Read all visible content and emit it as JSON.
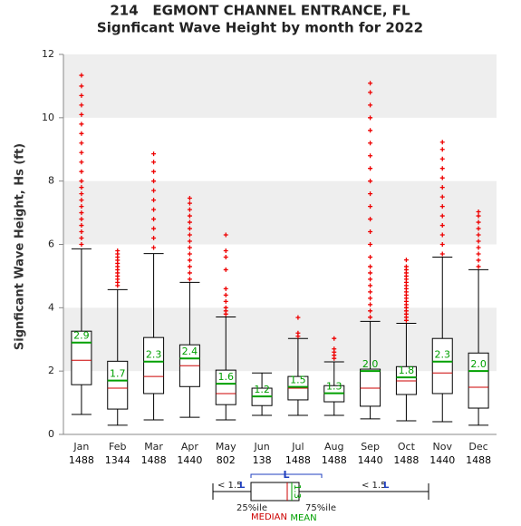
{
  "chart_data": {
    "type": "box",
    "title": "214   EGMONT CHANNEL ENTRANCE, FL",
    "subtitle": "Signficant Wave Height by month for 2022",
    "y_label": "Signficant Wave Height, Hs (ft)",
    "categories": [
      "Jan",
      "Feb",
      "Mar",
      "Apr",
      "May",
      "Jun",
      "Jul",
      "Aug",
      "Sep",
      "Oct",
      "Nov",
      "Dec"
    ],
    "counts": [
      1488,
      1344,
      1488,
      1440,
      802,
      138,
      1488,
      1488,
      1440,
      1488,
      1440,
      1488
    ],
    "whisker_low": [
      0.63,
      0.29,
      0.46,
      0.54,
      0.46,
      0.6,
      0.6,
      0.6,
      0.49,
      0.43,
      0.4,
      0.29
    ],
    "q1": [
      1.57,
      0.8,
      1.29,
      1.51,
      0.94,
      0.91,
      1.09,
      1.03,
      0.89,
      1.26,
      1.29,
      0.83
    ],
    "median": [
      2.34,
      1.46,
      1.83,
      2.17,
      1.29,
      1.2,
      1.46,
      1.29,
      1.46,
      1.69,
      1.94,
      1.49
    ],
    "q3": [
      3.26,
      2.31,
      3.06,
      2.83,
      2.03,
      1.46,
      1.83,
      1.54,
      2.06,
      2.14,
      3.03,
      2.57
    ],
    "whisker_high": [
      5.86,
      4.57,
      5.71,
      4.8,
      3.71,
      1.94,
      3.03,
      2.29,
      3.57,
      3.51,
      5.6,
      5.2
    ],
    "means": [
      2.9,
      1.7,
      2.3,
      2.4,
      1.6,
      1.2,
      1.5,
      1.3,
      2.0,
      1.8,
      2.3,
      2.0
    ],
    "mean_labels": [
      "2.9",
      "1.7",
      "2.3",
      "2.4",
      "1.6",
      "1.2",
      "1.5",
      "1.3",
      "2.0",
      "1.8",
      "2.3",
      "2.0"
    ],
    "outliers": [
      [
        6.0,
        6.2,
        6.4,
        6.6,
        6.8,
        7.0,
        7.2,
        7.4,
        7.6,
        7.8,
        8.0,
        8.3,
        8.6,
        8.9,
        9.2,
        9.5,
        9.8,
        10.1,
        10.4,
        10.7,
        11.0,
        11.34
      ],
      [
        4.7,
        4.8,
        4.9,
        5.0,
        5.1,
        5.2,
        5.3,
        5.4,
        5.5,
        5.6,
        5.7,
        5.8
      ],
      [
        5.9,
        6.2,
        6.5,
        6.8,
        7.1,
        7.4,
        7.7,
        8.0,
        8.3,
        8.6,
        8.86
      ],
      [
        4.9,
        5.1,
        5.3,
        5.5,
        5.7,
        5.9,
        6.1,
        6.3,
        6.5,
        6.7,
        6.9,
        7.1,
        7.3,
        7.46
      ],
      [
        3.8,
        3.9,
        4.0,
        4.2,
        4.4,
        4.6,
        5.2,
        5.6,
        5.8,
        6.3
      ],
      [],
      [
        3.1,
        3.2,
        3.69
      ],
      [
        2.4,
        2.5,
        2.6,
        2.7,
        3.03
      ],
      [
        3.7,
        3.9,
        4.1,
        4.3,
        4.5,
        4.7,
        4.9,
        5.1,
        5.3,
        5.6,
        6.0,
        6.4,
        6.8,
        7.2,
        7.6,
        8.0,
        8.4,
        8.8,
        9.2,
        9.6,
        10.0,
        10.4,
        10.8,
        11.09
      ],
      [
        3.6,
        3.7,
        3.8,
        3.9,
        4.0,
        4.1,
        4.2,
        4.3,
        4.4,
        4.5,
        4.6,
        4.7,
        4.8,
        4.9,
        5.0,
        5.1,
        5.2,
        5.3,
        5.51
      ],
      [
        5.7,
        6.0,
        6.3,
        6.6,
        6.9,
        7.2,
        7.5,
        7.8,
        8.1,
        8.4,
        8.7,
        9.0,
        9.23
      ],
      [
        5.3,
        5.5,
        5.7,
        5.9,
        6.1,
        6.3,
        6.5,
        6.7,
        6.9,
        7.03
      ]
    ],
    "box_color": "#000000",
    "median_color": "#cc0000",
    "mean_color": "#00a000",
    "outlier_color": "#ee0000",
    "band_color": "#eeeeee",
    "ylim": [
      0,
      12
    ],
    "yticks": [
      0,
      2,
      4,
      6,
      8,
      10,
      12
    ],
    "grid": true,
    "legend_key": {
      "lower": "< 1.5",
      "upper": "< 1.5",
      "iqr": "L",
      "mean_example": "1.3",
      "q1": "25%ile",
      "q3": "75%ile",
      "median": "MEDIAN",
      "mean": "MEAN"
    }
  }
}
